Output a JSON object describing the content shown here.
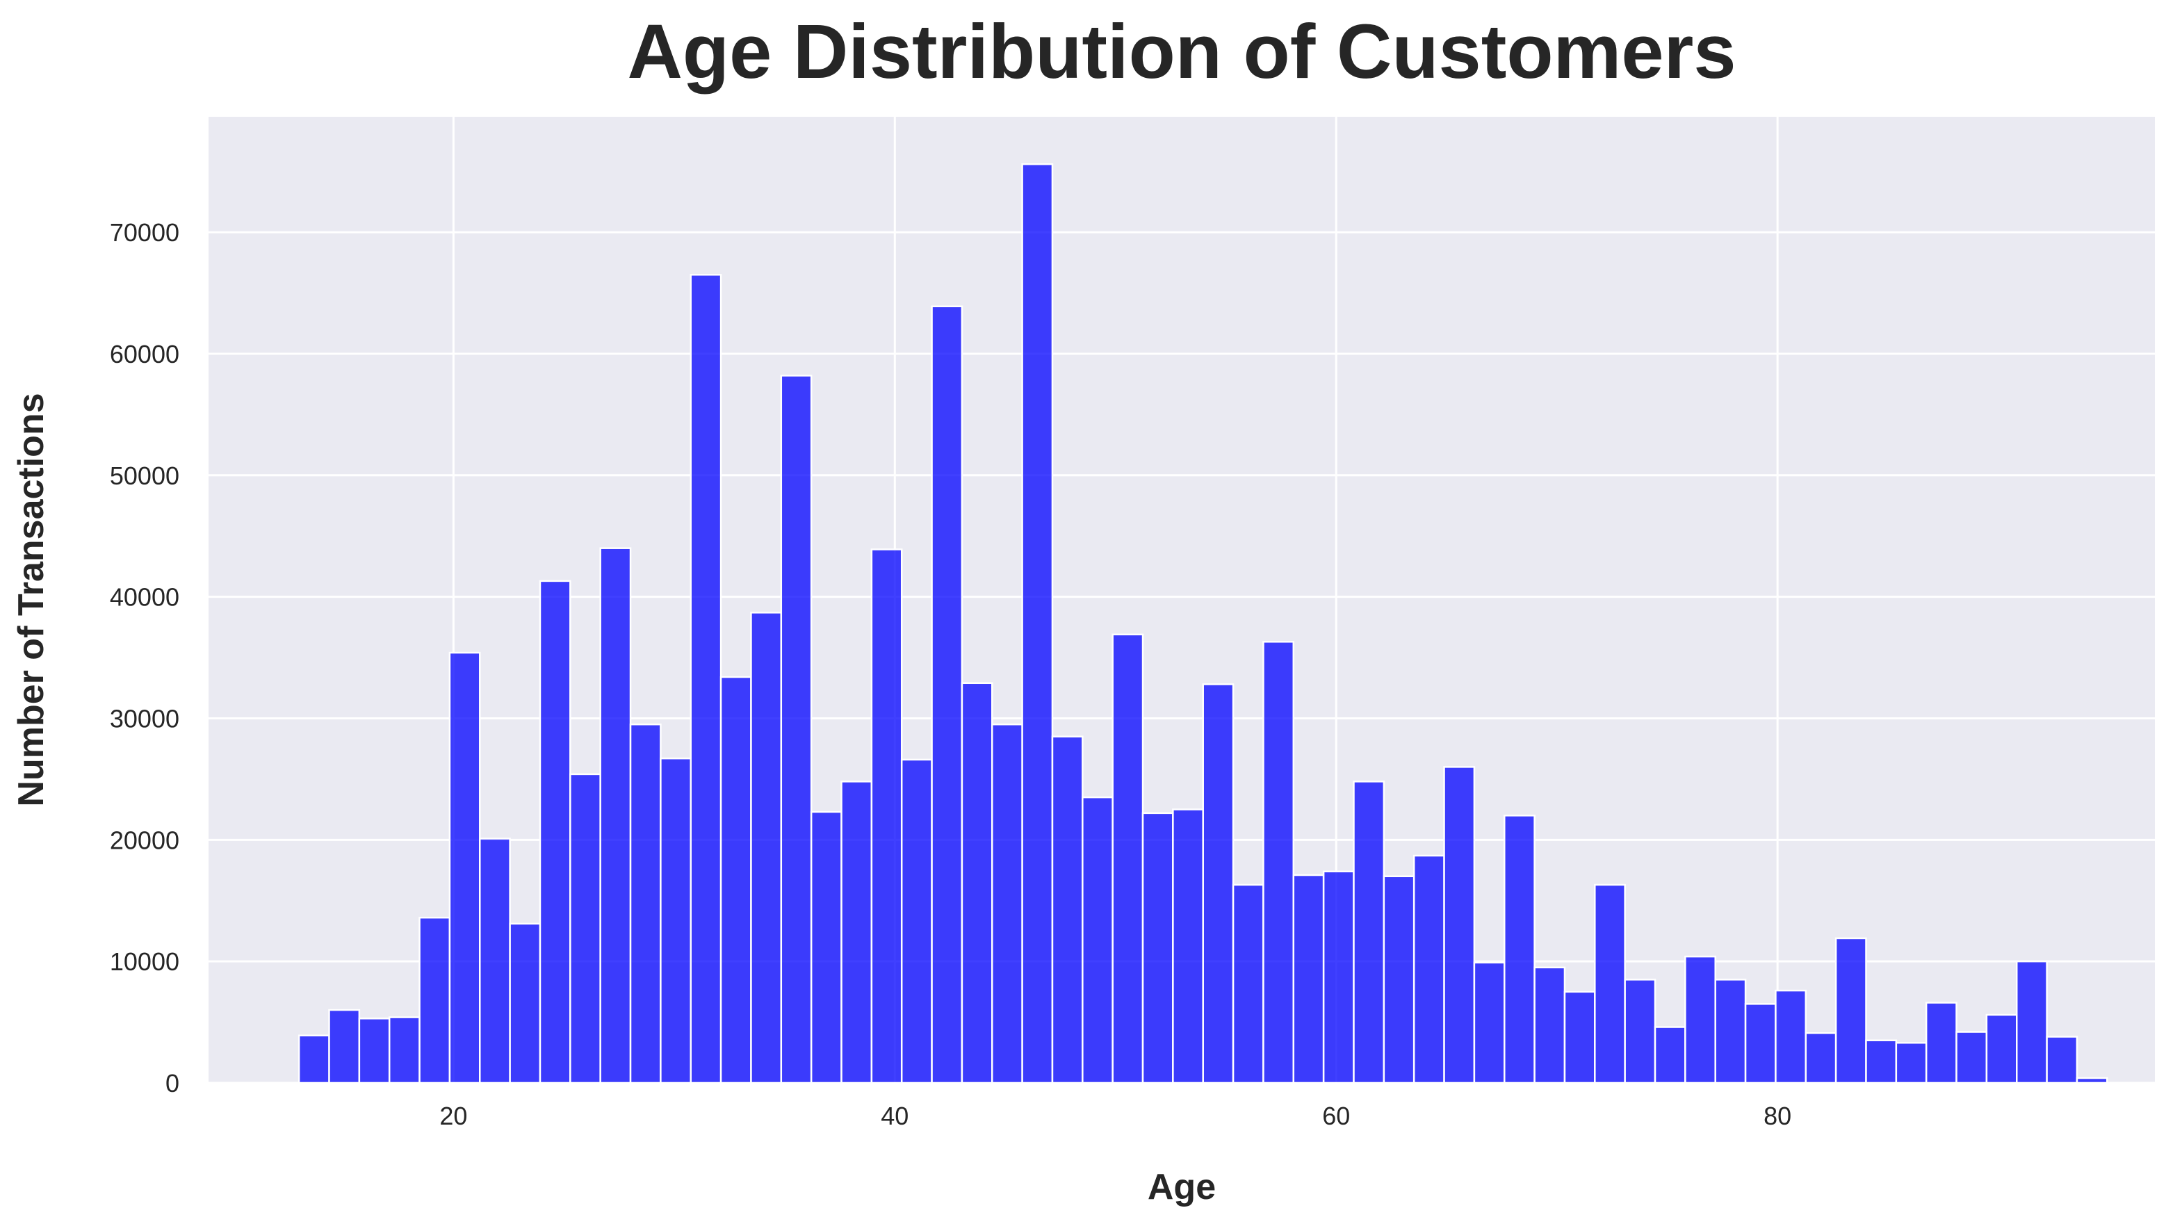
{
  "chart_data": {
    "type": "bar",
    "title": "Age Distribution of Customers",
    "xlabel": "Age",
    "ylabel": "Number of Transactions",
    "xlim": [
      8.9,
      97.1
    ],
    "ylim": [
      0,
      79500
    ],
    "xticks": [
      20,
      40,
      60,
      80
    ],
    "yticks": [
      0,
      10000,
      20000,
      30000,
      40000,
      50000,
      60000,
      70000
    ],
    "grid": true,
    "bin_start": 13,
    "bin_width": 1.3656,
    "values": [
      3900,
      6000,
      5300,
      5400,
      13600,
      35400,
      20100,
      13100,
      41300,
      25400,
      44000,
      29500,
      26700,
      66500,
      33400,
      38700,
      58200,
      22300,
      24800,
      43900,
      26600,
      63900,
      32900,
      29500,
      75600,
      28500,
      23500,
      36900,
      22200,
      22500,
      32800,
      16300,
      36300,
      17100,
      17400,
      24800,
      17000,
      18700,
      26000,
      9900,
      22000,
      9500,
      7500,
      16300,
      8500,
      4600,
      10400,
      8500,
      6500,
      7600,
      4100,
      11900,
      3500,
      3300,
      6600,
      4200,
      5600,
      10000,
      3800,
      400
    ],
    "colors": {
      "bar": "#0000ff",
      "bar_opacity": 0.75,
      "bar_edge": "#ffffff",
      "plot_background": "#eaeaf2",
      "grid": "#ffffff"
    }
  }
}
